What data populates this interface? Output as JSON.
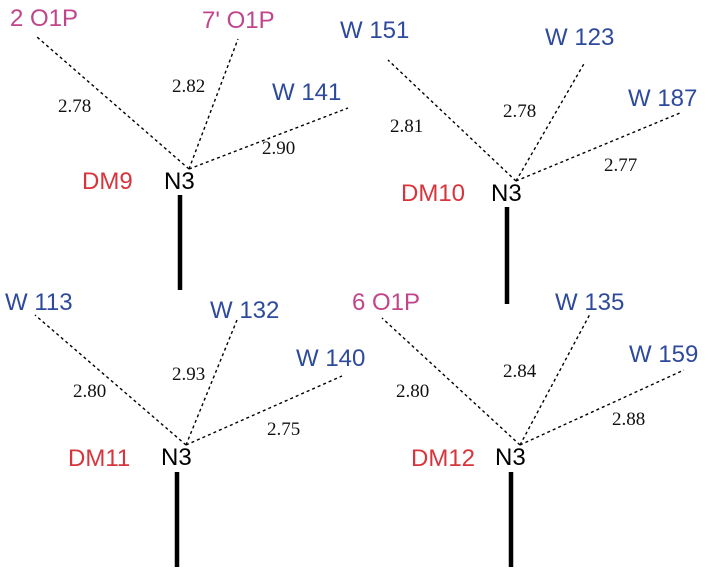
{
  "colors": {
    "water": "#2e4a9c",
    "phosphate": "#c0458a",
    "residue": "#d8343c",
    "atom": "#000000"
  },
  "panels": [
    {
      "residue": "DM9",
      "atom": "N3",
      "partners": [
        {
          "label": "2 O1P",
          "kind": "phosphate",
          "distance": "2.78"
        },
        {
          "label": "7' O1P",
          "kind": "phosphate",
          "distance": "2.82"
        },
        {
          "label": "W 141",
          "kind": "water",
          "distance": "2.90"
        }
      ]
    },
    {
      "residue": "DM10",
      "atom": "N3",
      "partners": [
        {
          "label": "W 151",
          "kind": "water",
          "distance": "2.81"
        },
        {
          "label": "W 123",
          "kind": "water",
          "distance": "2.78"
        },
        {
          "label": "W 187",
          "kind": "water",
          "distance": "2.77"
        }
      ]
    },
    {
      "residue": "DM11",
      "atom": "N3",
      "partners": [
        {
          "label": "W 113",
          "kind": "water",
          "distance": "2.80"
        },
        {
          "label": "W 132",
          "kind": "water",
          "distance": "2.93"
        },
        {
          "label": "W 140",
          "kind": "water",
          "distance": "2.75"
        }
      ]
    },
    {
      "residue": "DM12",
      "atom": "N3",
      "partners": [
        {
          "label": "6 O1P",
          "kind": "phosphate",
          "distance": "2.80"
        },
        {
          "label": "W 135",
          "kind": "water",
          "distance": "2.84"
        },
        {
          "label": "W 159",
          "kind": "water",
          "distance": "2.88"
        }
      ]
    }
  ]
}
